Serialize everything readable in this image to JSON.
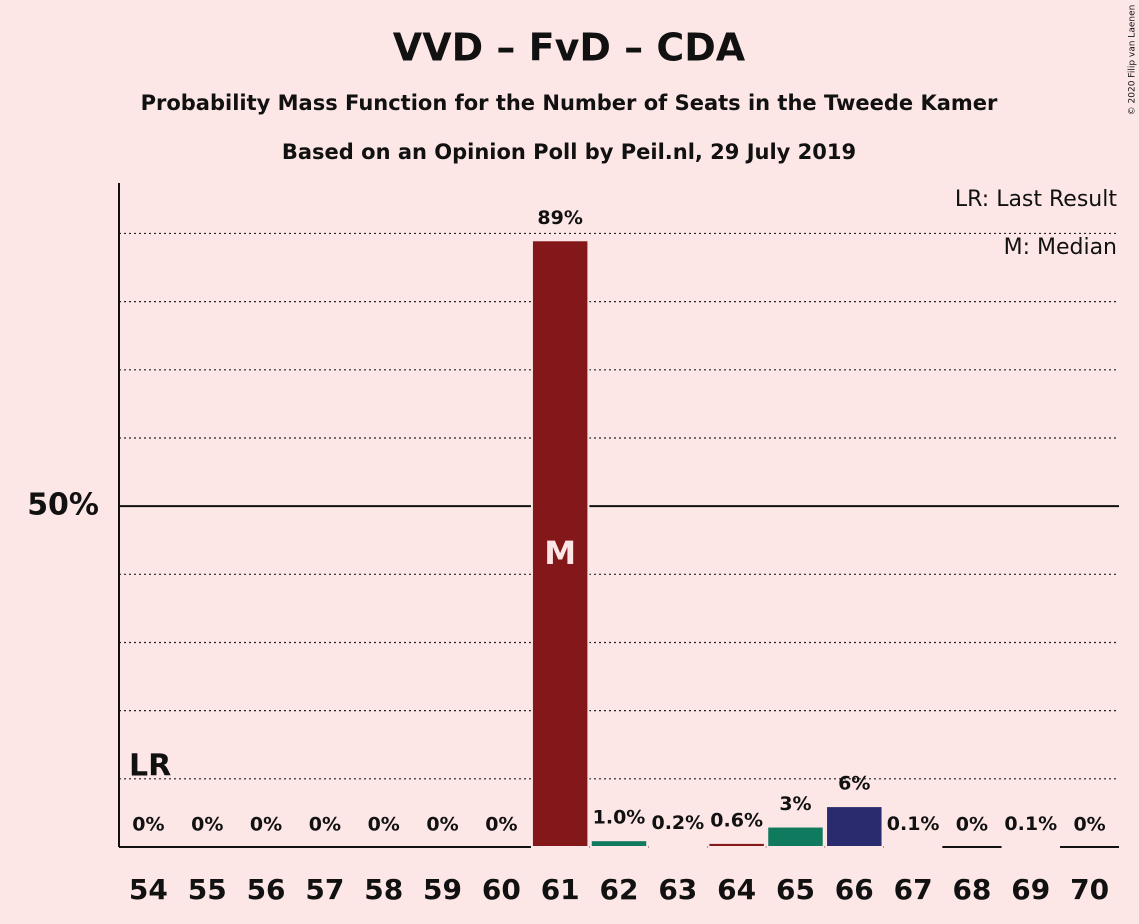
{
  "chart_data": {
    "type": "bar",
    "title": "VVD – FvD – CDA",
    "subtitle": "Probability Mass Function for the Number of Seats in the Tweede Kamer",
    "subtitle2": "Based on an Opinion Poll by Peil.nl, 29 July 2019",
    "copyright": "© 2020 Filip van Laenen",
    "legend_lines": [
      "LR: Last Result",
      "M: Median"
    ],
    "categories": [
      "54",
      "55",
      "56",
      "57",
      "58",
      "59",
      "60",
      "61",
      "62",
      "63",
      "64",
      "65",
      "66",
      "67",
      "68",
      "69",
      "70"
    ],
    "values": [
      0,
      0,
      0,
      0,
      0,
      0,
      0,
      89,
      1.0,
      0.2,
      0.6,
      3,
      6,
      0.1,
      0,
      0.1,
      0
    ],
    "value_labels": [
      "0%",
      "0%",
      "0%",
      "0%",
      "0%",
      "0%",
      "0%",
      "89%",
      "1.0%",
      "0.2%",
      "0.6%",
      "3%",
      "6%",
      "0.1%",
      "0%",
      "0.1%",
      "0%"
    ],
    "colors": [
      "#84171a",
      "#0f7a5e",
      "#2a2a6e",
      "#84171a",
      "#0f7a5e",
      "#2a2a6e",
      "#84171a",
      "#84171a",
      "#0f7a5e",
      "#2a2a6e",
      "#84171a",
      "#0f7a5e",
      "#2a2a6e",
      "#2a2a6e",
      "#84171a",
      "#0f7a5e",
      "#2a2a6e"
    ],
    "annotations": [
      {
        "text": "LR",
        "category": "54"
      },
      {
        "text": "M",
        "category": "61"
      }
    ],
    "ylim": [
      0,
      97.4
    ],
    "yticks": [
      {
        "value": 50,
        "label": "50%"
      }
    ],
    "minor_grid": [
      10,
      20,
      30,
      40,
      60,
      70,
      80,
      90
    ]
  }
}
